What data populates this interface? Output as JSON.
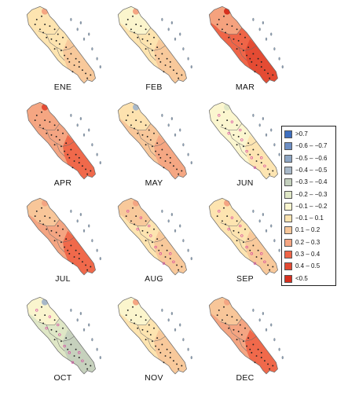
{
  "colors": {
    "deep_red": "#d7301f",
    "red": "#e34a33",
    "orange_red": "#ef6548",
    "orange": "#f4a582",
    "light_orange": "#fdd0a2",
    "pale_yellow": "#fde4b0",
    "cream": "#fff3c8",
    "pale_green": "#e4ebc3",
    "sage": "#cfd9b8",
    "gray_green": "#b9c7b0",
    "gray_blue": "#a8b8c8",
    "blue": "#6e8fc4",
    "bright_blue": "#3f6fbf",
    "outline": "#6b6b6b",
    "station_black": "#222222",
    "station_pink": "#d63c9c",
    "station_gray": "#8aa0b8"
  },
  "legend": {
    "items": [
      {
        "label": ">0.7",
        "color": "#3f6fbf"
      },
      {
        "label": "−0.6 – −0.7",
        "color": "#6e8fc4"
      },
      {
        "label": "−0.5 – −0.6",
        "color": "#8ea6c4"
      },
      {
        "label": "−0.4 – −0.5",
        "color": "#a8b8c8"
      },
      {
        "label": "−0.3 – −0.4",
        "color": "#c4d0bd"
      },
      {
        "label": "−0.2 – −0.3",
        "color": "#dfe7c6"
      },
      {
        "label": "−0.1 – −0.2",
        "color": "#fbf6cf"
      },
      {
        "label": "−0.1 – 0.1",
        "color": "#fde4b0"
      },
      {
        "label": "0.1 – 0.2",
        "color": "#f8c79a"
      },
      {
        "label": "0.2 – 0.3",
        "color": "#f4a582"
      },
      {
        "label": "0.3 – 0.4",
        "color": "#ef6548"
      },
      {
        "label": "0.4 – 0.5",
        "color": "#e34a33"
      },
      {
        "label": "<0.5",
        "color": "#d7301f"
      }
    ]
  },
  "panels": [
    {
      "label": "ENE",
      "fill": "#fde4b0",
      "north": "#fde4b0",
      "south": "#f8c79a",
      "spot": "#f4a582",
      "station_color": "#222222"
    },
    {
      "label": "FEB",
      "fill": "#fde4b0",
      "north": "#fbf6cf",
      "south": "#f8c79a",
      "spot": "#f4a582",
      "station_color": "#222222"
    },
    {
      "label": "MAR",
      "fill": "#ef6548",
      "north": "#f4a582",
      "south": "#e34a33",
      "spot": "#d7301f",
      "station_color": "#222222"
    },
    {
      "label": "APR",
      "fill": "#f4a582",
      "north": "#f4a582",
      "south": "#ef6548",
      "spot": "#e34a33",
      "station_color": "#222222"
    },
    {
      "label": "MAY",
      "fill": "#f8c79a",
      "north": "#fde4b0",
      "south": "#f4a582",
      "spot": "#a8b8c8",
      "station_color": "#222222"
    },
    {
      "label": "JUN",
      "fill": "#fbf6cf",
      "north": "#fbf6cf",
      "south": "#fde4b0",
      "spot": "#dfe7c6",
      "station_color": "#d63c9c"
    },
    {
      "label": "JUL",
      "fill": "#f4a582",
      "north": "#f8c79a",
      "south": "#ef6548",
      "spot": "#f4a582",
      "station_color": "#222222"
    },
    {
      "label": "AUG",
      "fill": "#fde4b0",
      "north": "#f8c79a",
      "south": "#f8c79a",
      "spot": "#f4a582",
      "station_color": "#d63c9c"
    },
    {
      "label": "SEP",
      "fill": "#fde4b0",
      "north": "#fde4b0",
      "south": "#f8c79a",
      "spot": "#f4a582",
      "station_color": "#d63c9c"
    },
    {
      "label": "OCT",
      "fill": "#dfe7c6",
      "north": "#fbf6cf",
      "south": "#c4d0bd",
      "spot": "#a8b8c8",
      "station_color": "#d63c9c"
    },
    {
      "label": "NOV",
      "fill": "#fde4b0",
      "north": "#fbf6cf",
      "south": "#f8c79a",
      "spot": "#f4a582",
      "station_color": "#222222"
    },
    {
      "label": "DEC",
      "fill": "#f4a582",
      "north": "#f8c79a",
      "south": "#ef6548",
      "spot": "#f4a582",
      "station_color": "#222222"
    }
  ]
}
